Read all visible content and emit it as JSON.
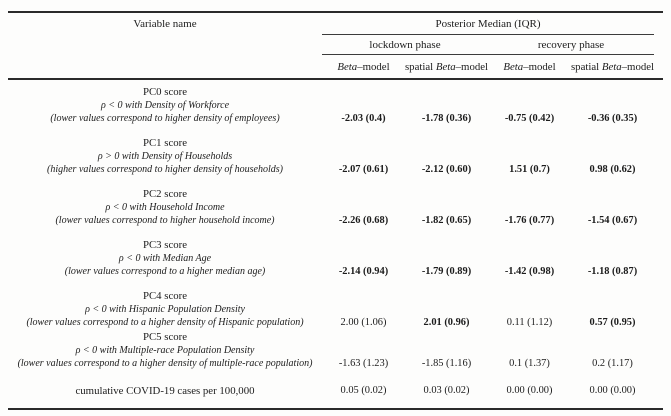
{
  "table": {
    "header": {
      "variable_col": "Variable name",
      "span_label": "Posterior Median (IQR)",
      "phases": {
        "lockdown": "lockdown phase",
        "recovery": "recovery phase"
      },
      "model_cols": [
        {
          "prefix": "",
          "italic": "Beta",
          "suffix": "–model"
        },
        {
          "prefix": "spatial ",
          "italic": "Beta",
          "suffix": "–model"
        },
        {
          "prefix": "",
          "italic": "Beta",
          "suffix": "–model"
        },
        {
          "prefix": "spatial ",
          "italic": "Beta",
          "suffix": "–model"
        }
      ]
    },
    "rows": [
      {
        "line1": "PC0 score",
        "line2": "ρ < 0 with Density of Workforce",
        "line3": "(lower values correspond to higher density of employees)",
        "values": [
          {
            "text": "-2.03 (0.4)",
            "bold": true
          },
          {
            "text": "-1.78 (0.36)",
            "bold": true
          },
          {
            "text": "-0.75 (0.42)",
            "bold": true
          },
          {
            "text": "-0.36 (0.35)",
            "bold": true
          }
        ]
      },
      {
        "line1": "PC1 score",
        "line2": "ρ > 0 with Density of Households",
        "line3": "(higher values correspond to higher density of households)",
        "values": [
          {
            "text": "-2.07 (0.61)",
            "bold": true
          },
          {
            "text": "-2.12 (0.60)",
            "bold": true
          },
          {
            "text": "1.51 (0.7)",
            "bold": true
          },
          {
            "text": "0.98 (0.62)",
            "bold": true
          }
        ]
      },
      {
        "line1": "PC2 score",
        "line2": "ρ < 0 with Household Income",
        "line3": "(lower values correspond to higher household income)",
        "values": [
          {
            "text": "-2.26 (0.68)",
            "bold": true
          },
          {
            "text": "-1.82 (0.65)",
            "bold": true
          },
          {
            "text": "-1.76 (0.77)",
            "bold": true
          },
          {
            "text": "-1.54 (0.67)",
            "bold": true
          }
        ]
      },
      {
        "line1": "PC3 score",
        "line2": "ρ < 0 with Median Age",
        "line3": "(lower values correspond to a higher median age)",
        "values": [
          {
            "text": "-2.14 (0.94)",
            "bold": true
          },
          {
            "text": "-1.79 (0.89)",
            "bold": true
          },
          {
            "text": "-1.42 (0.98)",
            "bold": true
          },
          {
            "text": "-1.18 (0.87)",
            "bold": true
          }
        ]
      },
      {
        "line1": "PC4 score",
        "line2": "ρ < 0 with Hispanic Population Density",
        "line3": "(lower values correspond to a higher density of Hispanic population)",
        "values": [
          {
            "text": "2.00 (1.06)",
            "bold": false
          },
          {
            "text": "2.01 (0.96)",
            "bold": true
          },
          {
            "text": "0.11 (1.12)",
            "bold": false
          },
          {
            "text": "0.57 (0.95)",
            "bold": true
          }
        ]
      },
      {
        "line1": "PC5 score",
        "line2": "ρ < 0 with Multiple-race Population Density",
        "line3": "(lower values correspond to a higher density of multiple-race population)",
        "values": [
          {
            "text": "-1.63 (1.23)",
            "bold": false
          },
          {
            "text": "-1.85 (1.16)",
            "bold": false
          },
          {
            "text": "0.1 (1.37)",
            "bold": false
          },
          {
            "text": "0.2 (1.17)",
            "bold": false
          }
        ]
      },
      {
        "line1": "cumulative COVID-19 cases per 100,000",
        "line2": "",
        "line3": "",
        "values": [
          {
            "text": "0.05 (0.02)",
            "bold": false
          },
          {
            "text": "0.03 (0.02)",
            "bold": false
          },
          {
            "text": "0.00 (0.00)",
            "bold": false
          },
          {
            "text": "0.00 (0.00)",
            "bold": false
          }
        ]
      }
    ]
  }
}
